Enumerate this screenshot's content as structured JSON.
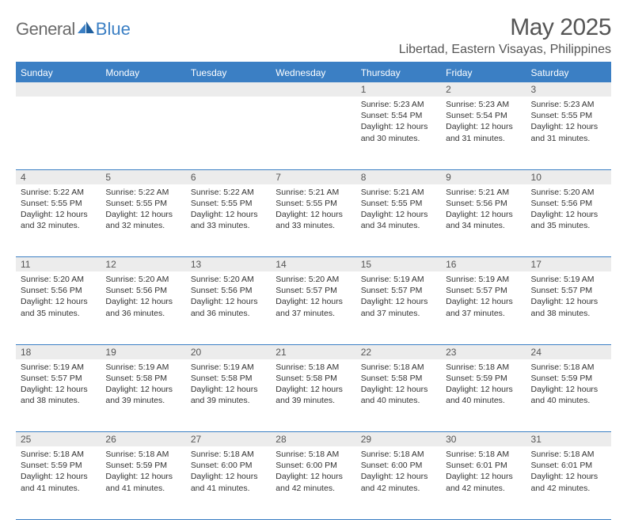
{
  "brand": {
    "general": "General",
    "blue": "Blue"
  },
  "title": "May 2025",
  "location": "Libertad, Eastern Visayas, Philippines",
  "colors": {
    "header_bg": "#3b7fc4",
    "header_text": "#ffffff",
    "daynum_bg": "#ececec",
    "text": "#333333",
    "muted": "#555555",
    "logo_gray": "#6b6b6b",
    "logo_blue": "#3b7fc4",
    "border": "#3b7fc4",
    "page_bg": "#ffffff"
  },
  "typography": {
    "title_fontsize": 30,
    "location_fontsize": 16,
    "header_fontsize": 12,
    "daynum_fontsize": 12,
    "cell_fontsize": 10.5,
    "font_family": "Arial"
  },
  "weekdays": [
    "Sunday",
    "Monday",
    "Tuesday",
    "Wednesday",
    "Thursday",
    "Friday",
    "Saturday"
  ],
  "weeks": [
    [
      null,
      null,
      null,
      null,
      {
        "n": "1",
        "sr": "Sunrise: 5:23 AM",
        "ss": "Sunset: 5:54 PM",
        "d1": "Daylight: 12 hours",
        "d2": "and 30 minutes."
      },
      {
        "n": "2",
        "sr": "Sunrise: 5:23 AM",
        "ss": "Sunset: 5:54 PM",
        "d1": "Daylight: 12 hours",
        "d2": "and 31 minutes."
      },
      {
        "n": "3",
        "sr": "Sunrise: 5:23 AM",
        "ss": "Sunset: 5:55 PM",
        "d1": "Daylight: 12 hours",
        "d2": "and 31 minutes."
      }
    ],
    [
      {
        "n": "4",
        "sr": "Sunrise: 5:22 AM",
        "ss": "Sunset: 5:55 PM",
        "d1": "Daylight: 12 hours",
        "d2": "and 32 minutes."
      },
      {
        "n": "5",
        "sr": "Sunrise: 5:22 AM",
        "ss": "Sunset: 5:55 PM",
        "d1": "Daylight: 12 hours",
        "d2": "and 32 minutes."
      },
      {
        "n": "6",
        "sr": "Sunrise: 5:22 AM",
        "ss": "Sunset: 5:55 PM",
        "d1": "Daylight: 12 hours",
        "d2": "and 33 minutes."
      },
      {
        "n": "7",
        "sr": "Sunrise: 5:21 AM",
        "ss": "Sunset: 5:55 PM",
        "d1": "Daylight: 12 hours",
        "d2": "and 33 minutes."
      },
      {
        "n": "8",
        "sr": "Sunrise: 5:21 AM",
        "ss": "Sunset: 5:55 PM",
        "d1": "Daylight: 12 hours",
        "d2": "and 34 minutes."
      },
      {
        "n": "9",
        "sr": "Sunrise: 5:21 AM",
        "ss": "Sunset: 5:56 PM",
        "d1": "Daylight: 12 hours",
        "d2": "and 34 minutes."
      },
      {
        "n": "10",
        "sr": "Sunrise: 5:20 AM",
        "ss": "Sunset: 5:56 PM",
        "d1": "Daylight: 12 hours",
        "d2": "and 35 minutes."
      }
    ],
    [
      {
        "n": "11",
        "sr": "Sunrise: 5:20 AM",
        "ss": "Sunset: 5:56 PM",
        "d1": "Daylight: 12 hours",
        "d2": "and 35 minutes."
      },
      {
        "n": "12",
        "sr": "Sunrise: 5:20 AM",
        "ss": "Sunset: 5:56 PM",
        "d1": "Daylight: 12 hours",
        "d2": "and 36 minutes."
      },
      {
        "n": "13",
        "sr": "Sunrise: 5:20 AM",
        "ss": "Sunset: 5:56 PM",
        "d1": "Daylight: 12 hours",
        "d2": "and 36 minutes."
      },
      {
        "n": "14",
        "sr": "Sunrise: 5:20 AM",
        "ss": "Sunset: 5:57 PM",
        "d1": "Daylight: 12 hours",
        "d2": "and 37 minutes."
      },
      {
        "n": "15",
        "sr": "Sunrise: 5:19 AM",
        "ss": "Sunset: 5:57 PM",
        "d1": "Daylight: 12 hours",
        "d2": "and 37 minutes."
      },
      {
        "n": "16",
        "sr": "Sunrise: 5:19 AM",
        "ss": "Sunset: 5:57 PM",
        "d1": "Daylight: 12 hours",
        "d2": "and 37 minutes."
      },
      {
        "n": "17",
        "sr": "Sunrise: 5:19 AM",
        "ss": "Sunset: 5:57 PM",
        "d1": "Daylight: 12 hours",
        "d2": "and 38 minutes."
      }
    ],
    [
      {
        "n": "18",
        "sr": "Sunrise: 5:19 AM",
        "ss": "Sunset: 5:57 PM",
        "d1": "Daylight: 12 hours",
        "d2": "and 38 minutes."
      },
      {
        "n": "19",
        "sr": "Sunrise: 5:19 AM",
        "ss": "Sunset: 5:58 PM",
        "d1": "Daylight: 12 hours",
        "d2": "and 39 minutes."
      },
      {
        "n": "20",
        "sr": "Sunrise: 5:19 AM",
        "ss": "Sunset: 5:58 PM",
        "d1": "Daylight: 12 hours",
        "d2": "and 39 minutes."
      },
      {
        "n": "21",
        "sr": "Sunrise: 5:18 AM",
        "ss": "Sunset: 5:58 PM",
        "d1": "Daylight: 12 hours",
        "d2": "and 39 minutes."
      },
      {
        "n": "22",
        "sr": "Sunrise: 5:18 AM",
        "ss": "Sunset: 5:58 PM",
        "d1": "Daylight: 12 hours",
        "d2": "and 40 minutes."
      },
      {
        "n": "23",
        "sr": "Sunrise: 5:18 AM",
        "ss": "Sunset: 5:59 PM",
        "d1": "Daylight: 12 hours",
        "d2": "and 40 minutes."
      },
      {
        "n": "24",
        "sr": "Sunrise: 5:18 AM",
        "ss": "Sunset: 5:59 PM",
        "d1": "Daylight: 12 hours",
        "d2": "and 40 minutes."
      }
    ],
    [
      {
        "n": "25",
        "sr": "Sunrise: 5:18 AM",
        "ss": "Sunset: 5:59 PM",
        "d1": "Daylight: 12 hours",
        "d2": "and 41 minutes."
      },
      {
        "n": "26",
        "sr": "Sunrise: 5:18 AM",
        "ss": "Sunset: 5:59 PM",
        "d1": "Daylight: 12 hours",
        "d2": "and 41 minutes."
      },
      {
        "n": "27",
        "sr": "Sunrise: 5:18 AM",
        "ss": "Sunset: 6:00 PM",
        "d1": "Daylight: 12 hours",
        "d2": "and 41 minutes."
      },
      {
        "n": "28",
        "sr": "Sunrise: 5:18 AM",
        "ss": "Sunset: 6:00 PM",
        "d1": "Daylight: 12 hours",
        "d2": "and 42 minutes."
      },
      {
        "n": "29",
        "sr": "Sunrise: 5:18 AM",
        "ss": "Sunset: 6:00 PM",
        "d1": "Daylight: 12 hours",
        "d2": "and 42 minutes."
      },
      {
        "n": "30",
        "sr": "Sunrise: 5:18 AM",
        "ss": "Sunset: 6:01 PM",
        "d1": "Daylight: 12 hours",
        "d2": "and 42 minutes."
      },
      {
        "n": "31",
        "sr": "Sunrise: 5:18 AM",
        "ss": "Sunset: 6:01 PM",
        "d1": "Daylight: 12 hours",
        "d2": "and 42 minutes."
      }
    ]
  ]
}
